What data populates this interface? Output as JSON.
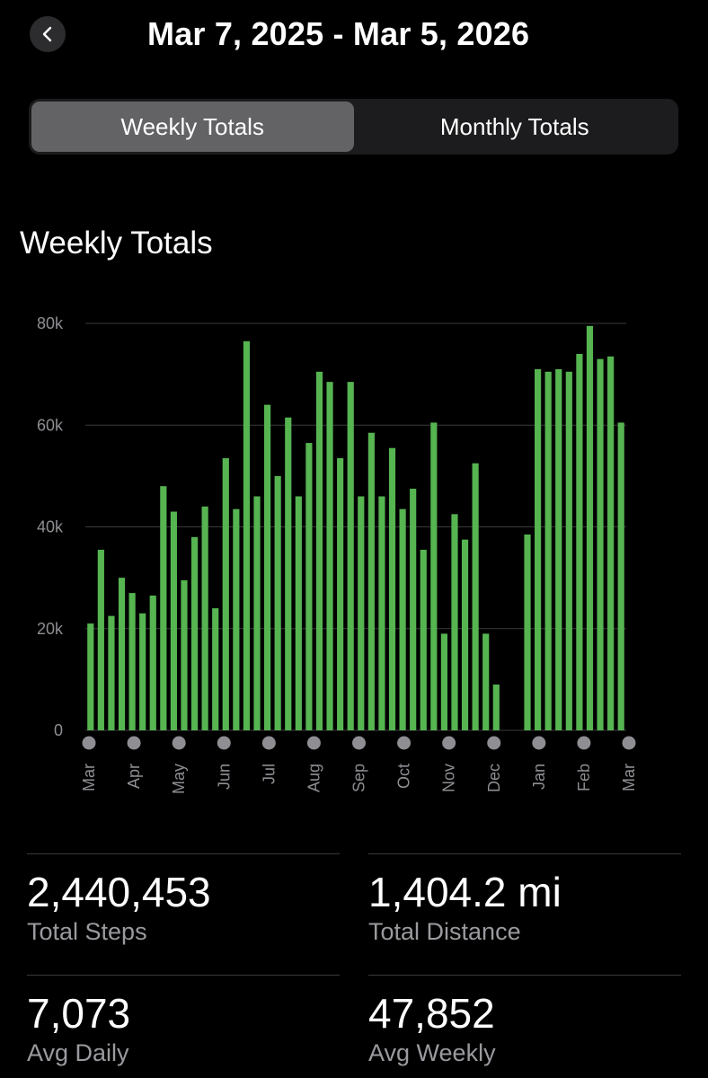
{
  "header": {
    "title": "Mar 7, 2025 - Mar 5, 2026"
  },
  "tabs": [
    {
      "label": "Weekly Totals",
      "active": true
    },
    {
      "label": "Monthly Totals",
      "active": false
    }
  ],
  "section_title": "Weekly Totals",
  "colors": {
    "bar": "#56b451",
    "grid": "#3a3a3c",
    "axis_text": "#8e8e93",
    "dot": "#8e8e93"
  },
  "chart_data": {
    "type": "bar",
    "title": "Weekly Totals",
    "xlabel": "",
    "ylabel": "",
    "ylim": [
      0,
      80000
    ],
    "yticks": [
      0,
      20000,
      40000,
      60000,
      80000
    ],
    "ytick_labels": [
      "0",
      "20k",
      "40k",
      "60k",
      "80k"
    ],
    "grid": true,
    "month_labels": [
      "Mar",
      "Apr",
      "May",
      "Jun",
      "Jul",
      "Aug",
      "Sep",
      "Oct",
      "Nov",
      "Dec",
      "Jan",
      "Feb",
      "Mar"
    ],
    "values": [
      21000,
      35500,
      22500,
      30000,
      27000,
      23000,
      26500,
      48000,
      43000,
      29500,
      38000,
      44000,
      24000,
      53500,
      43500,
      76500,
      46000,
      64000,
      50000,
      61500,
      46000,
      56500,
      70500,
      68500,
      53500,
      68500,
      46000,
      58500,
      46000,
      55500,
      43500,
      47500,
      35500,
      60500,
      19000,
      42500,
      37500,
      52500,
      19000,
      9000,
      0,
      0,
      38500,
      71000,
      70500,
      71000,
      70500,
      74000,
      79500,
      73000,
      73500,
      60500
    ]
  },
  "stats": [
    {
      "value": "2,440,453",
      "label": "Total Steps"
    },
    {
      "value": "1,404.2 mi",
      "label": "Total Distance"
    },
    {
      "value": "7,073",
      "label": "Avg Daily"
    },
    {
      "value": "47,852",
      "label": "Avg Weekly"
    }
  ]
}
